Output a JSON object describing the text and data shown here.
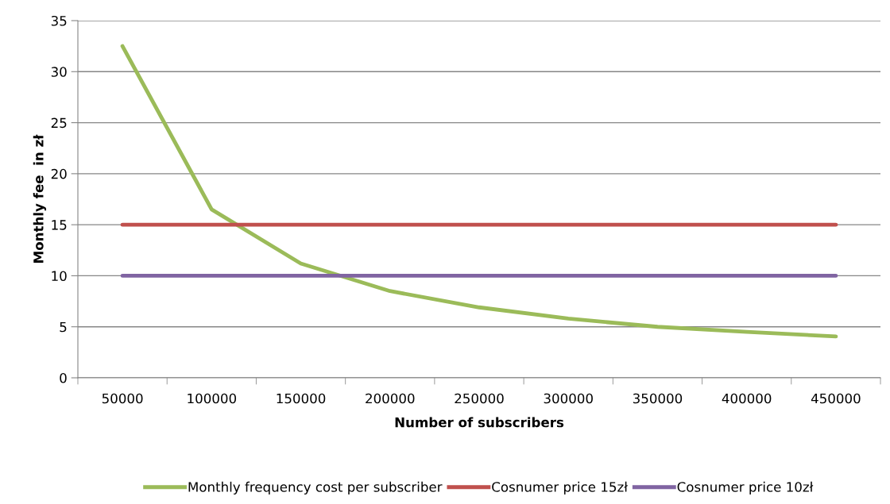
{
  "chart_data": {
    "type": "line",
    "xlabel": "Number of subscribers",
    "ylabel": "Monthly fee  in zł",
    "categories": [
      "50000",
      "100000",
      "150000",
      "200000",
      "250000",
      "300000",
      "350000",
      "400000",
      "450000"
    ],
    "series": [
      {
        "name": "Monthly frequency cost per subscriber",
        "color": "#9bbb59",
        "values": [
          32.5,
          16.5,
          11.2,
          8.5,
          6.9,
          5.8,
          5.0,
          4.5,
          4.05
        ]
      },
      {
        "name": "Cosnumer price 15zł",
        "color": "#c0504d",
        "values": [
          15,
          15,
          15,
          15,
          15,
          15,
          15,
          15,
          15
        ]
      },
      {
        "name": "Cosnumer price 10zł",
        "color": "#8064a2",
        "values": [
          10,
          10,
          10,
          10,
          10,
          10,
          10,
          10,
          10
        ]
      }
    ],
    "ylim": [
      0,
      35
    ],
    "yticks": [
      0,
      5,
      10,
      15,
      20,
      25,
      30,
      35
    ],
    "grid": "y",
    "legend": "bottom",
    "marker": "none",
    "line_style": "solid"
  }
}
